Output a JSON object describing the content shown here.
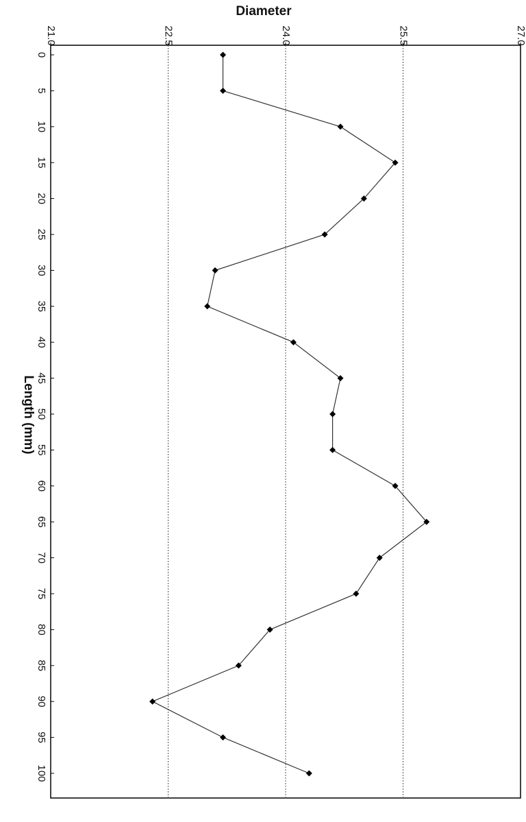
{
  "chart_data": {
    "type": "line",
    "orientation": "rotated-90-clockwise",
    "title": "",
    "xlabel": "Length (mm)",
    "ylabel": "Diameter",
    "x": [
      0,
      5,
      10,
      15,
      20,
      25,
      30,
      35,
      40,
      45,
      50,
      55,
      60,
      65,
      70,
      75,
      80,
      85,
      90,
      95,
      100
    ],
    "series": [
      {
        "values": [
          23.2,
          23.2,
          24.7,
          25.4,
          25.0,
          24.5,
          23.1,
          23.0,
          24.1,
          24.7,
          24.6,
          24.6,
          25.4,
          25.8,
          25.2,
          24.9,
          23.8,
          23.4,
          22.3,
          23.2,
          24.3
        ]
      }
    ],
    "xlim": [
      0,
      100
    ],
    "ylim": [
      21.0,
      27.0
    ],
    "x_ticks": [
      "0",
      "5",
      "10",
      "15",
      "20",
      "25",
      "30",
      "35",
      "40",
      "45",
      "50",
      "55",
      "60",
      "65",
      "70",
      "75",
      "80",
      "85",
      "90",
      "95",
      "100"
    ],
    "y_ticks": [
      "21.0",
      "22.5",
      "24.0",
      "25.5",
      "27.0"
    ],
    "y_tick_values": [
      21.0,
      22.5,
      24.0,
      25.5,
      27.0
    ],
    "grid": "dashed horizontal at y ticks",
    "line_color": "#333333",
    "marker": "diamond",
    "marker_color": "#000000"
  }
}
